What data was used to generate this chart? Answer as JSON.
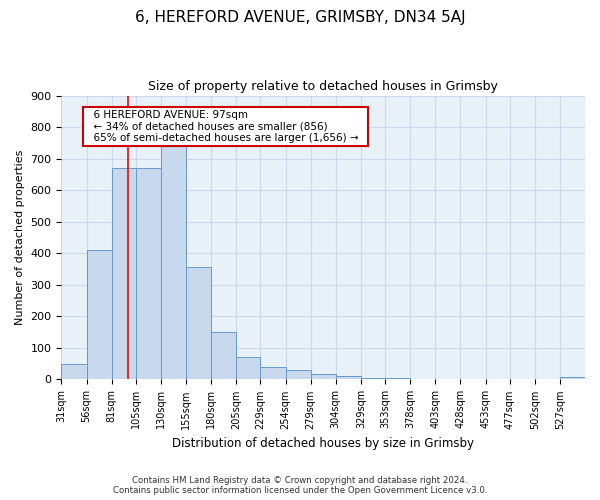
{
  "title": "6, HEREFORD AVENUE, GRIMSBY, DN34 5AJ",
  "subtitle": "Size of property relative to detached houses in Grimsby",
  "xlabel": "Distribution of detached houses by size in Grimsby",
  "ylabel": "Number of detached properties",
  "footer_line1": "Contains HM Land Registry data © Crown copyright and database right 2024.",
  "footer_line2": "Contains public sector information licensed under the Open Government Licence v3.0.",
  "bar_edges": [
    31,
    56,
    81,
    105,
    130,
    155,
    180,
    205,
    229,
    254,
    279,
    304,
    329,
    353,
    378,
    403,
    428,
    453,
    477,
    502,
    527,
    552
  ],
  "bar_values": [
    50,
    410,
    670,
    670,
    750,
    355,
    150,
    70,
    38,
    30,
    18,
    10,
    5,
    3,
    2,
    1,
    0,
    0,
    0,
    0,
    8
  ],
  "bar_color": "#c8d8ed",
  "bar_edge_color": "#6699cc",
  "grid_color": "#c8d8ed",
  "background_color": "#e8f0f8",
  "red_line_x": 97,
  "annotation_title": "6 HEREFORD AVENUE: 97sqm",
  "annotation_line1": "← 34% of detached houses are smaller (856)",
  "annotation_line2": "65% of semi-detached houses are larger (1,656) →",
  "annotation_box_color": "#cc0000",
  "ylim": [
    0,
    900
  ],
  "yticks": [
    0,
    100,
    200,
    300,
    400,
    500,
    600,
    700,
    800,
    900
  ]
}
